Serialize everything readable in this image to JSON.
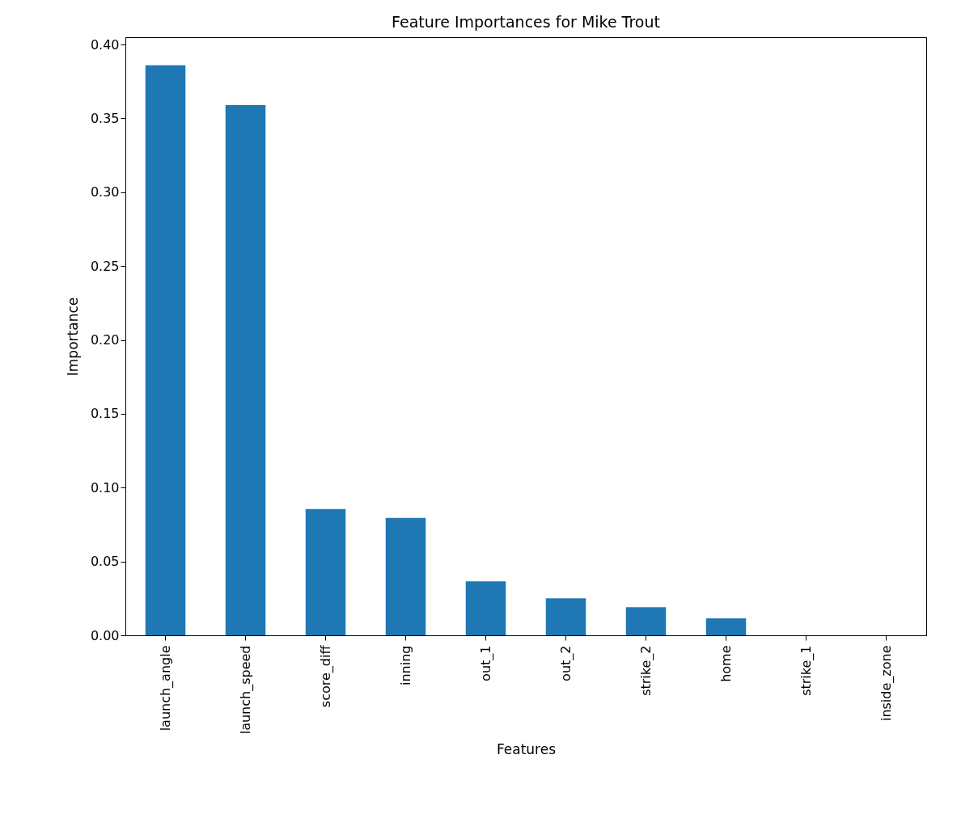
{
  "chart_data": {
    "type": "bar",
    "title": "Feature Importances for Mike Trout",
    "xlabel": "Features",
    "ylabel": "Importance",
    "categories": [
      "launch_angle",
      "launch_speed",
      "score_diff",
      "inning",
      "out_1",
      "out_2",
      "strike_2",
      "home",
      "strike_1",
      "inside_zone"
    ],
    "values": [
      0.386,
      0.359,
      0.0855,
      0.0795,
      0.0365,
      0.025,
      0.019,
      0.0115,
      0,
      0
    ],
    "color": "#1f77b4",
    "ylim": [
      0,
      0.405
    ],
    "yticks": [
      {
        "value": 0,
        "label": "0.00"
      },
      {
        "value": 0.05,
        "label": "0.05"
      },
      {
        "value": 0.1,
        "label": "0.10"
      },
      {
        "value": 0.15,
        "label": "0.15"
      },
      {
        "value": 0.2,
        "label": "0.20"
      },
      {
        "value": 0.25,
        "label": "0.25"
      },
      {
        "value": 0.3,
        "label": "0.30"
      },
      {
        "value": 0.35,
        "label": "0.35"
      },
      {
        "value": 0.4,
        "label": "0.40"
      }
    ],
    "grid": false
  }
}
